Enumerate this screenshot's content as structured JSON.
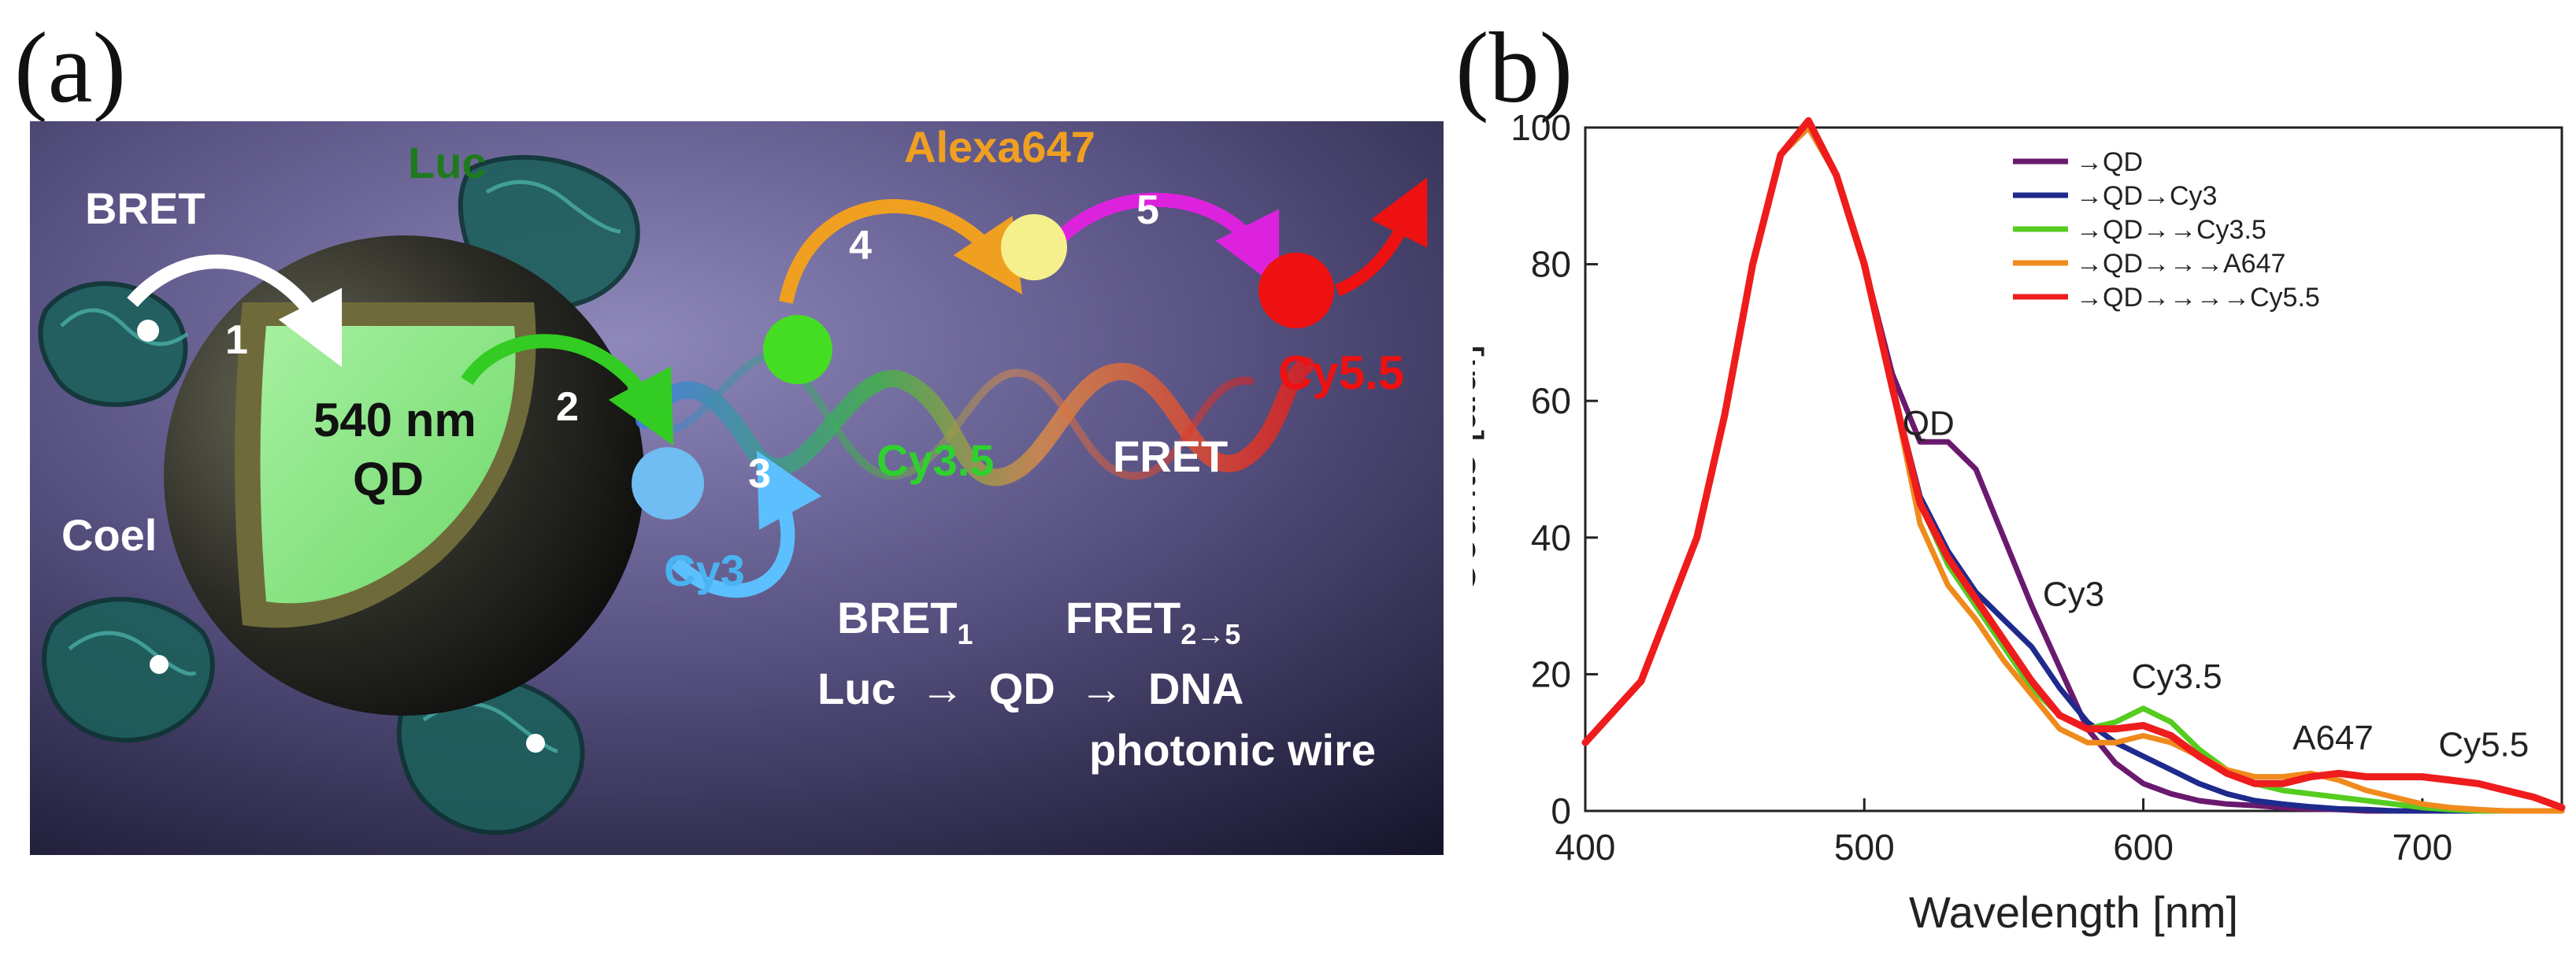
{
  "panel_a": {
    "label": "(a)",
    "bret_label": "BRET",
    "luc_label": "Luc",
    "coel_label": "Coel",
    "qd_size": "540 nm",
    "qd_name": "QD",
    "step1": "1",
    "step2": "2",
    "step3": "3",
    "step4": "4",
    "step5": "5",
    "cy3": "Cy3",
    "cy35": "Cy3.5",
    "alexa": "Alexa647",
    "cy55": "Cy5.5",
    "fret": "FRET",
    "bret_sub_main": "BRET",
    "bret_sub": "1",
    "fret_sub_main": "FRET",
    "fret_sub": "2→5",
    "chain": "Luc  →  QD  →  DNA",
    "chain2": "photonic wire",
    "colors": {
      "cy3": "#4ab3f0",
      "cy35": "#2fd12f",
      "alexa": "#f0a020",
      "cy55": "#ee1111",
      "luc": "#1e7a1e",
      "magenta": "#dd22dd"
    }
  },
  "panel_b": {
    "label": "(b)"
  },
  "chart_data": {
    "type": "line",
    "xlabel": "Wavelength [nm]",
    "ylabel": "Counts [a.u.]",
    "xlim": [
      400,
      750
    ],
    "ylim": [
      0,
      100
    ],
    "xticks": [
      400,
      500,
      600,
      700
    ],
    "yticks": [
      0,
      20,
      40,
      60,
      80,
      100
    ],
    "legend_position": "top-right",
    "x": [
      400,
      420,
      440,
      450,
      460,
      470,
      480,
      490,
      500,
      510,
      520,
      530,
      540,
      550,
      560,
      570,
      580,
      590,
      600,
      610,
      620,
      630,
      640,
      650,
      660,
      670,
      680,
      690,
      700,
      710,
      720,
      730,
      740,
      750
    ],
    "series": [
      {
        "name": "→QD",
        "color": "#6a1a6e",
        "values": [
          10,
          19,
          40,
          58,
          80,
          96,
          100,
          93,
          80,
          64,
          54,
          54,
          50,
          40,
          30,
          21,
          12,
          7,
          4,
          2.5,
          1.5,
          1,
          0.8,
          0.5,
          0.3,
          0.2,
          0,
          0,
          0,
          0,
          0,
          0,
          0,
          0
        ]
      },
      {
        "name": "→QD→Cy3",
        "color": "#1e2a8c",
        "values": [
          10,
          19,
          40,
          58,
          80,
          96,
          100,
          93,
          80,
          62,
          46,
          38,
          32,
          28,
          24,
          18,
          13,
          10,
          8,
          6,
          4,
          2.5,
          1.5,
          1,
          0.6,
          0.3,
          0.2,
          0,
          0,
          0,
          0,
          0,
          0,
          0
        ]
      },
      {
        "name": "→QD→→Cy3.5",
        "color": "#55cc1f",
        "values": [
          10,
          19,
          40,
          58,
          80,
          96,
          100,
          93,
          80,
          62,
          45,
          36,
          30,
          24,
          18,
          14,
          12,
          13,
          15,
          13,
          9,
          6,
          4,
          3,
          2.5,
          2,
          1.5,
          1,
          0.5,
          0.2,
          0,
          0,
          0,
          0
        ]
      },
      {
        "name": "→QD→→→A647",
        "color": "#f08a1c",
        "values": [
          10,
          19,
          40,
          58,
          80,
          96,
          100,
          93,
          80,
          62,
          42,
          33,
          28,
          22,
          17,
          12,
          10,
          10,
          11,
          10,
          8,
          6,
          5,
          5,
          5.5,
          4.5,
          3,
          2,
          1,
          0.5,
          0.2,
          0,
          0,
          0
        ]
      },
      {
        "name": "→QD→→→→Cy5.5",
        "color": "#ee1c1c",
        "values": [
          10,
          19,
          40,
          58,
          80,
          96,
          101,
          93,
          80,
          62,
          45,
          37,
          31,
          25,
          19,
          14,
          12,
          12,
          12.5,
          11,
          8,
          5.5,
          4,
          4,
          5,
          5.5,
          5,
          5,
          5,
          4.5,
          4,
          3,
          2,
          0.5
        ]
      }
    ],
    "annotations": [
      {
        "text": "QD",
        "x": 523,
        "y": 55
      },
      {
        "text": "Cy3",
        "x": 575,
        "y": 30
      },
      {
        "text": "Cy3.5",
        "x": 612,
        "y": 18
      },
      {
        "text": "A647",
        "x": 668,
        "y": 9
      },
      {
        "text": "Cy5.5",
        "x": 722,
        "y": 8
      }
    ]
  }
}
